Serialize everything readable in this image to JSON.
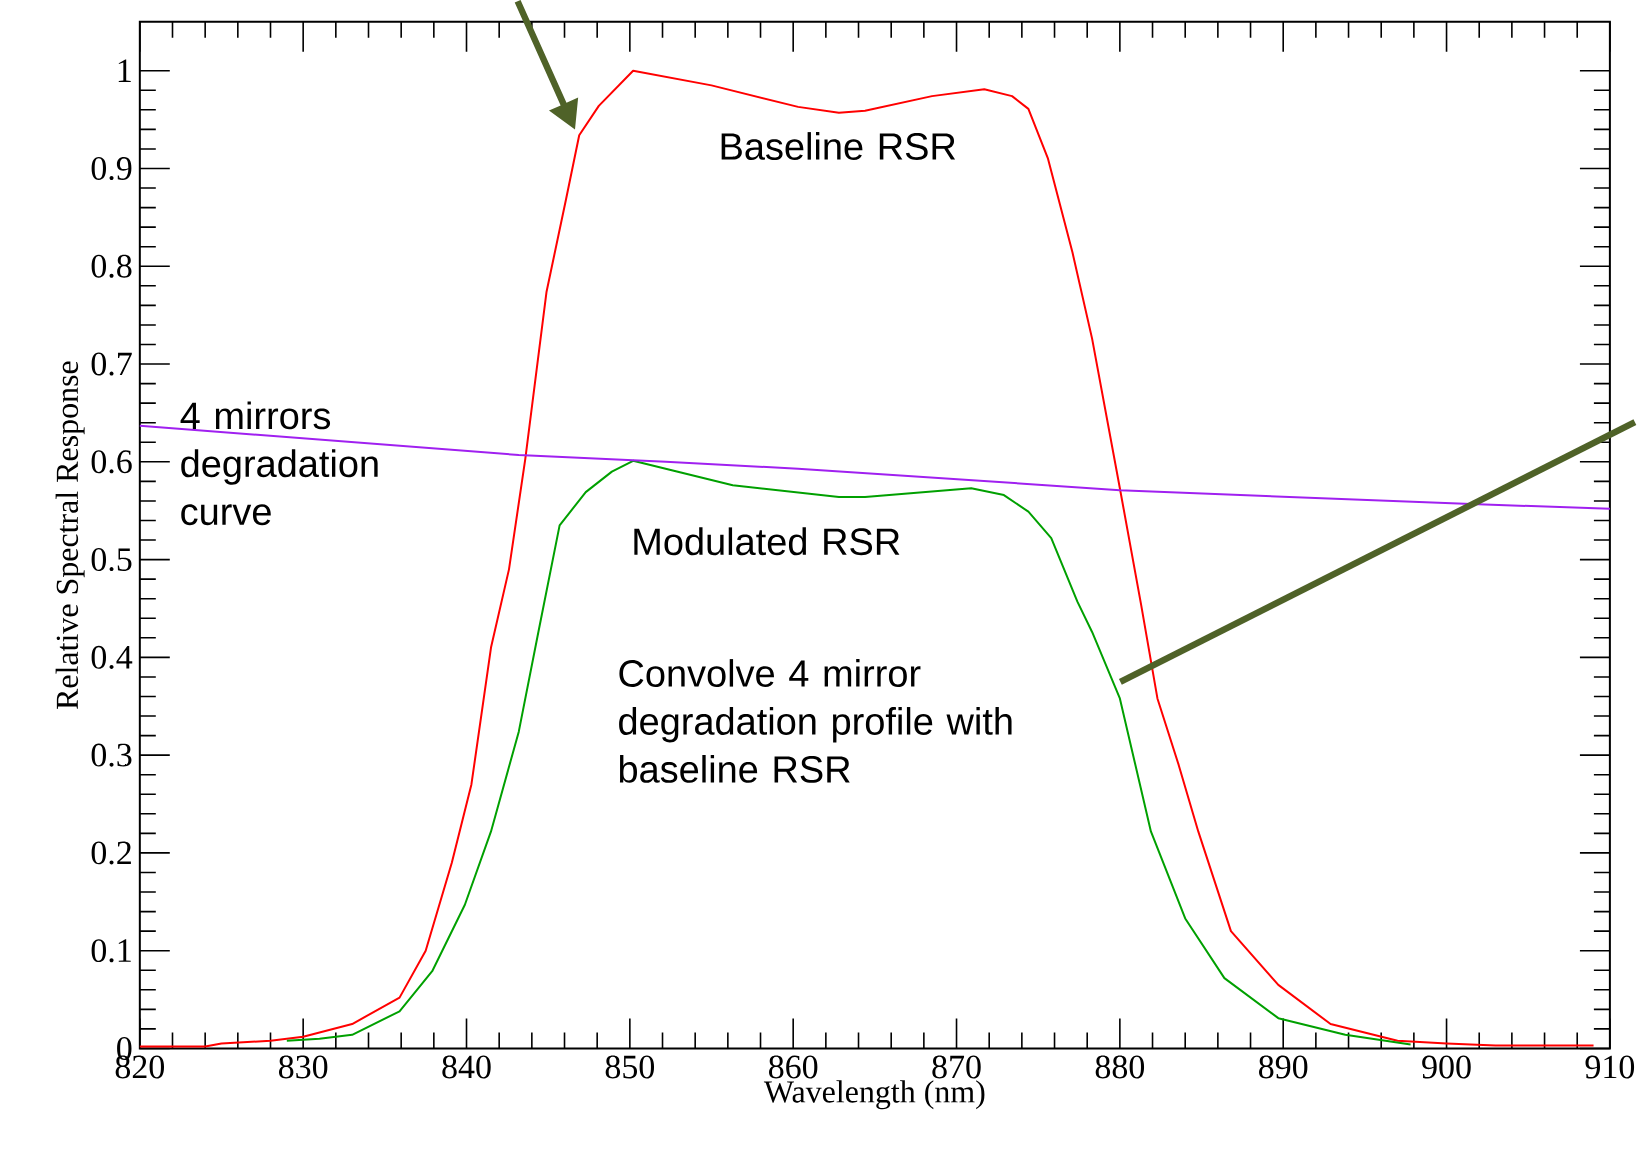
{
  "chart_data": {
    "type": "line",
    "xlabel": "Wavelength (nm)",
    "ylabel": "Relative Spectral Response",
    "xlim": [
      820,
      910
    ],
    "ylim": [
      0,
      1.05
    ],
    "xticks": [
      820,
      830,
      840,
      850,
      860,
      870,
      880,
      890,
      900,
      910
    ],
    "yticks": [
      0,
      0.1,
      0.2,
      0.3,
      0.4,
      0.5,
      0.6,
      0.7,
      0.8,
      0.9,
      1
    ],
    "grid": false,
    "marker": "none",
    "line_style": "solid",
    "series": [
      {
        "color": "#ff0000",
        "x": [
          820,
          824,
          825,
          828,
          830,
          833,
          835.9,
          837.5,
          839.1,
          840.3,
          841.5,
          842.6,
          843.6,
          844.9,
          846.1,
          846.9,
          848.1,
          850.2,
          855,
          860.3,
          862.8,
          864.4,
          868.5,
          871.7,
          873.4,
          874.4,
          875.6,
          877.1,
          878.3,
          880,
          881.3,
          882.3,
          883.6,
          884.8,
          886.8,
          889.7,
          892.9,
          897,
          900,
          903,
          909
        ],
        "values": [
          0.002,
          0.002,
          0.005,
          0.008,
          0.012,
          0.025,
          0.052,
          0.1,
          0.19,
          0.27,
          0.41,
          0.49,
          0.603,
          0.774,
          0.869,
          0.934,
          0.964,
          1.0,
          0.985,
          0.963,
          0.957,
          0.959,
          0.974,
          0.981,
          0.974,
          0.961,
          0.91,
          0.814,
          0.726,
          0.573,
          0.454,
          0.358,
          0.29,
          0.222,
          0.12,
          0.065,
          0.025,
          0.008,
          0.005,
          0.003,
          0.003
        ]
      },
      {
        "color": "#00a000",
        "x": [
          829,
          831,
          833,
          835.9,
          837.9,
          839.9,
          841.5,
          843.2,
          844.4,
          845.7,
          847.3,
          848.9,
          850.2,
          856.3,
          862.8,
          864.4,
          870.9,
          872.9,
          874.4,
          875.8,
          877.4,
          878.3,
          880,
          881.9,
          884,
          886.4,
          889.7,
          893.8,
          897.8
        ],
        "values": [
          0.008,
          0.01,
          0.014,
          0.038,
          0.079,
          0.147,
          0.222,
          0.324,
          0.426,
          0.535,
          0.569,
          0.59,
          0.601,
          0.576,
          0.564,
          0.564,
          0.573,
          0.566,
          0.549,
          0.522,
          0.457,
          0.426,
          0.358,
          0.222,
          0.133,
          0.072,
          0.031,
          0.014,
          0.004
        ]
      },
      {
        "color": "#a020f0",
        "x": [
          820,
          843.2,
          852.2,
          860.3,
          880,
          901.1,
          910
        ],
        "values": [
          0.637,
          0.607,
          0.6,
          0.593,
          0.571,
          0.557,
          0.552
        ]
      }
    ],
    "annotations": [
      "Baseline RSR",
      "Modulated RSR",
      "4 mirrors degradation curve",
      "Convolve 4 mirror degradation profile with baseline RSR"
    ]
  }
}
